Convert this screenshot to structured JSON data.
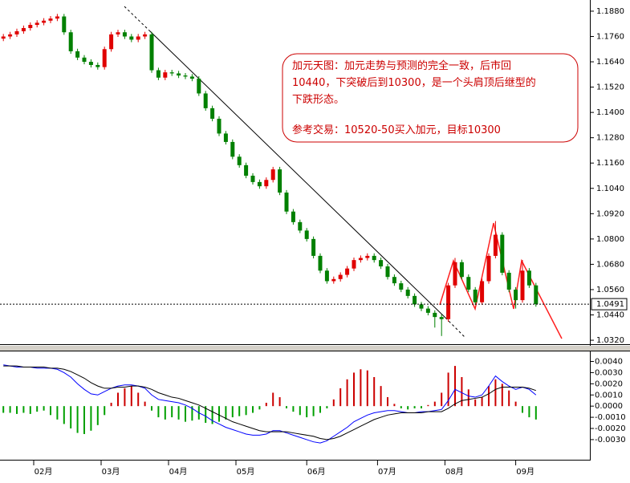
{
  "chart_data": [
    {
      "type": "candlestick",
      "annotation": [
        "加元天图：加元走势与预测的完全一致，后市回",
        "10440，下突破后到10300，是一个头肩顶后继型的",
        "下跌形态。",
        "参考交易：10520-50买入加元，目标10300"
      ],
      "up_color": "#e00000",
      "down_color": "#008000",
      "xlim": [
        -0.5,
        87
      ],
      "xticks": [
        {
          "value": 4.5,
          "label": "02月"
        },
        {
          "value": 14.5,
          "label": "03月"
        },
        {
          "value": 24.5,
          "label": "04月"
        },
        {
          "value": 34.5,
          "label": "05月"
        },
        {
          "value": 45,
          "label": "06月"
        },
        {
          "value": 55.5,
          "label": "07月"
        },
        {
          "value": 65.5,
          "label": "08月"
        },
        {
          "value": 76,
          "label": "09月"
        }
      ],
      "ylim": [
        1.0305,
        1.1933
      ],
      "yticks": [
        {
          "value": 1.188,
          "label": "1.1880"
        },
        {
          "value": 1.176,
          "label": "1.1760"
        },
        {
          "value": 1.164,
          "label": "1.1640"
        },
        {
          "value": 1.152,
          "label": "1.1520"
        },
        {
          "value": 1.14,
          "label": "1.1400"
        },
        {
          "value": 1.128,
          "label": "1.1280"
        },
        {
          "value": 1.116,
          "label": "1.1160"
        },
        {
          "value": 1.104,
          "label": "1.1040"
        },
        {
          "value": 1.092,
          "label": "1.0920"
        },
        {
          "value": 1.08,
          "label": "1.0800"
        },
        {
          "value": 1.068,
          "label": "1.0680"
        },
        {
          "value": 1.056,
          "label": "1.0560"
        },
        {
          "value": 1.044,
          "label": "1.0440"
        },
        {
          "value": 1.032,
          "label": "1.0320"
        }
      ],
      "last_price": {
        "value": 1.0491,
        "label": "1.0491"
      },
      "open": [
        1.175,
        1.176,
        1.177,
        1.1785,
        1.18,
        1.1815,
        1.1825,
        1.1835,
        1.1845,
        1.1855,
        1.178,
        1.169,
        1.166,
        1.164,
        1.1625,
        1.1615,
        1.17,
        1.177,
        1.178,
        1.176,
        1.1745,
        1.176,
        1.177,
        1.16,
        1.1565,
        1.159,
        1.1585,
        1.1575,
        1.157,
        1.156,
        1.149,
        1.142,
        1.137,
        1.13,
        1.126,
        1.119,
        1.115,
        1.11,
        1.107,
        1.105,
        1.108,
        1.113,
        1.102,
        1.093,
        1.088,
        1.084,
        1.08,
        1.072,
        1.065,
        1.06,
        1.061,
        1.063,
        1.066,
        1.07,
        1.071,
        1.072,
        1.07,
        1.067,
        1.062,
        1.059,
        1.056,
        1.053,
        1.049,
        1.047,
        1.045,
        1.043,
        1.042,
        1.058,
        1.069,
        1.062,
        1.056,
        1.05,
        1.06,
        1.072,
        1.082,
        1.064,
        1.056,
        1.051,
        1.065,
        1.058
      ],
      "high": [
        1.1772,
        1.1782,
        1.1797,
        1.1812,
        1.1827,
        1.1837,
        1.1847,
        1.1857,
        1.1867,
        1.1867,
        1.1792,
        1.1702,
        1.1672,
        1.1652,
        1.1637,
        1.1712,
        1.1782,
        1.1792,
        1.1792,
        1.1772,
        1.1772,
        1.1782,
        1.1782,
        1.1612,
        1.1602,
        1.1602,
        1.1597,
        1.1587,
        1.1582,
        1.1572,
        1.1502,
        1.1432,
        1.1382,
        1.1312,
        1.1272,
        1.1202,
        1.1162,
        1.1112,
        1.1082,
        1.1092,
        1.1142,
        1.1142,
        1.1032,
        1.0942,
        1.0892,
        1.0852,
        1.0812,
        1.0732,
        1.0662,
        1.0622,
        1.0642,
        1.0672,
        1.0712,
        1.0722,
        1.0732,
        1.0732,
        1.0712,
        1.0682,
        1.0632,
        1.0602,
        1.0572,
        1.0542,
        1.0502,
        1.0482,
        1.0462,
        1.0442,
        1.0592,
        1.071,
        1.0702,
        1.0632,
        1.0572,
        1.0612,
        1.0732,
        1.0885,
        1.0832,
        1.0652,
        1.0572,
        1.07,
        1.0662,
        1.0592
      ],
      "low": [
        1.1738,
        1.1748,
        1.1758,
        1.1773,
        1.1788,
        1.1803,
        1.1813,
        1.1823,
        1.1833,
        1.1768,
        1.1678,
        1.1648,
        1.1628,
        1.1613,
        1.1603,
        1.1603,
        1.1688,
        1.1758,
        1.1748,
        1.1733,
        1.1733,
        1.1748,
        1.1588,
        1.1553,
        1.1553,
        1.1573,
        1.1563,
        1.1558,
        1.1548,
        1.1478,
        1.1408,
        1.1358,
        1.1288,
        1.1248,
        1.1178,
        1.1138,
        1.1088,
        1.1058,
        1.1038,
        1.1038,
        1.1068,
        1.1008,
        1.0918,
        1.0868,
        1.0828,
        1.0788,
        1.0708,
        1.0638,
        1.0588,
        1.0588,
        1.0598,
        1.0618,
        1.0648,
        1.0688,
        1.0698,
        1.0688,
        1.0658,
        1.0608,
        1.0578,
        1.0548,
        1.0518,
        1.0478,
        1.0458,
        1.0438,
        1.038,
        1.034,
        1.0408,
        1.0568,
        1.0608,
        1.0548,
        1.0488,
        1.0488,
        1.0588,
        1.0708,
        1.0628,
        1.0548,
        1.047,
        1.0498,
        1.0568,
        1.0479
      ],
      "close": [
        1.176,
        1.177,
        1.1785,
        1.18,
        1.1815,
        1.1825,
        1.1835,
        1.1845,
        1.1855,
        1.178,
        1.169,
        1.166,
        1.164,
        1.1625,
        1.1615,
        1.17,
        1.177,
        1.178,
        1.176,
        1.1745,
        1.176,
        1.177,
        1.16,
        1.1565,
        1.159,
        1.1585,
        1.1575,
        1.157,
        1.156,
        1.149,
        1.142,
        1.137,
        1.13,
        1.126,
        1.119,
        1.115,
        1.11,
        1.107,
        1.105,
        1.108,
        1.113,
        1.102,
        1.093,
        1.088,
        1.084,
        1.08,
        1.072,
        1.065,
        1.06,
        1.061,
        1.063,
        1.066,
        1.07,
        1.071,
        1.072,
        1.07,
        1.067,
        1.062,
        1.059,
        1.056,
        1.053,
        1.049,
        1.047,
        1.045,
        1.043,
        1.042,
        1.058,
        1.069,
        1.062,
        1.056,
        1.05,
        1.06,
        1.072,
        1.082,
        1.064,
        1.056,
        1.051,
        1.065,
        1.058,
        1.0491
      ]
    },
    {
      "type": "macd",
      "ylim": [
        -0.0043,
        0.0049
      ],
      "yticks": [
        {
          "value": 0.004,
          "label": "0.0040"
        },
        {
          "value": 0.003,
          "label": "0.0030"
        },
        {
          "value": 0.002,
          "label": "0.0020"
        },
        {
          "value": 0.001,
          "label": "0.0010"
        },
        {
          "value": 0,
          "label": "0.0000"
        },
        {
          "value": -0.001,
          "label": "-0.0010"
        },
        {
          "value": -0.002,
          "label": "-0.0020"
        },
        {
          "value": -0.003,
          "label": "-0.0030"
        }
      ],
      "pos_color": "#cc0000",
      "neg_color": "#00a000",
      "histogram": [
        -0.0006,
        -0.0006,
        -0.0007,
        -0.0006,
        -0.0007,
        -0.0005,
        -0.0004,
        -0.0008,
        -0.0012,
        -0.0016,
        -0.002,
        -0.0024,
        -0.0025,
        -0.0022,
        -0.0017,
        -0.0008,
        0.0003,
        0.0012,
        0.0016,
        0.0018,
        0.0012,
        0.0004,
        -0.0004,
        -0.001,
        -0.0012,
        -0.001,
        -0.0012,
        -0.0014,
        -0.0013,
        -0.0012,
        -0.0015,
        -0.0016,
        -0.0014,
        -0.0012,
        -0.001,
        -0.0009,
        -0.0008,
        -0.0006,
        -0.0003,
        0.0003,
        0.0012,
        0.0008,
        -0.0002,
        -0.0005,
        -0.0008,
        -0.001,
        -0.0009,
        -0.0006,
        -0.0002,
        0.0006,
        0.0016,
        0.0024,
        0.003,
        0.0033,
        0.0032,
        0.0026,
        0.0018,
        0.0008,
        0.0002,
        -0.0002,
        -0.0003,
        -0.0002,
        -0.0002,
        0.0001,
        0.0004,
        0.0012,
        0.003,
        0.0036,
        0.0026,
        0.0015,
        0.0006,
        0.0008,
        0.0018,
        0.0024,
        0.002,
        0.0014,
        0.0004,
        -0.0006,
        -0.001,
        -0.0012
      ],
      "series": [
        {
          "color": "#0000ff",
          "values": [
            0.0037,
            0.0036,
            0.0035,
            0.0035,
            0.0035,
            0.0034,
            0.0034,
            0.0034,
            0.0033,
            0.003,
            0.0026,
            0.002,
            0.0015,
            0.0011,
            0.001,
            0.0013,
            0.0016,
            0.0018,
            0.0019,
            0.0019,
            0.0018,
            0.0016,
            0.001,
            0.0006,
            0.0005,
            0.0004,
            0.0003,
            0.0001,
            -0.0002,
            -0.0006,
            -0.0009,
            -0.0013,
            -0.0016,
            -0.0019,
            -0.0021,
            -0.0023,
            -0.0025,
            -0.0026,
            -0.0026,
            -0.0025,
            -0.0022,
            -0.0022,
            -0.0024,
            -0.0026,
            -0.0028,
            -0.003,
            -0.0032,
            -0.0033,
            -0.0031,
            -0.0027,
            -0.0023,
            -0.0019,
            -0.0014,
            -0.0011,
            -0.0008,
            -0.0006,
            -0.0005,
            -0.0004,
            -0.0004,
            -0.0005,
            -0.0006,
            -0.0006,
            -0.0005,
            -0.0005,
            -0.0004,
            -0.0003,
            0.0005,
            0.0015,
            0.0012,
            0.0009,
            0.0008,
            0.001,
            0.0018,
            0.0027,
            0.0022,
            0.0018,
            0.0015,
            0.0017,
            0.0015,
            0.001
          ]
        },
        {
          "color": "#000000",
          "values": [
            0.0036,
            0.0036,
            0.0036,
            0.0035,
            0.0035,
            0.0035,
            0.0035,
            0.0034,
            0.0034,
            0.0033,
            0.0031,
            0.0028,
            0.0025,
            0.0021,
            0.0018,
            0.0016,
            0.0016,
            0.0017,
            0.0017,
            0.0018,
            0.0018,
            0.0017,
            0.0015,
            0.0012,
            0.001,
            0.0008,
            0.0007,
            0.0005,
            0.0003,
            0.0001,
            -0.0002,
            -0.0005,
            -0.0008,
            -0.0011,
            -0.0014,
            -0.0016,
            -0.0018,
            -0.002,
            -0.0022,
            -0.0023,
            -0.0023,
            -0.0023,
            -0.0023,
            -0.0024,
            -0.0025,
            -0.0026,
            -0.0027,
            -0.0029,
            -0.003,
            -0.0029,
            -0.0027,
            -0.0024,
            -0.0021,
            -0.0018,
            -0.0015,
            -0.0012,
            -0.001,
            -0.0008,
            -0.0007,
            -0.0006,
            -0.0006,
            -0.0006,
            -0.0006,
            -0.0005,
            -0.0005,
            -0.0005,
            -0.0002,
            0.0002,
            0.0005,
            0.0006,
            0.0007,
            0.0008,
            0.0011,
            0.0015,
            0.0017,
            0.0017,
            0.0017,
            0.0017,
            0.0016,
            0.0014
          ]
        }
      ]
    }
  ]
}
